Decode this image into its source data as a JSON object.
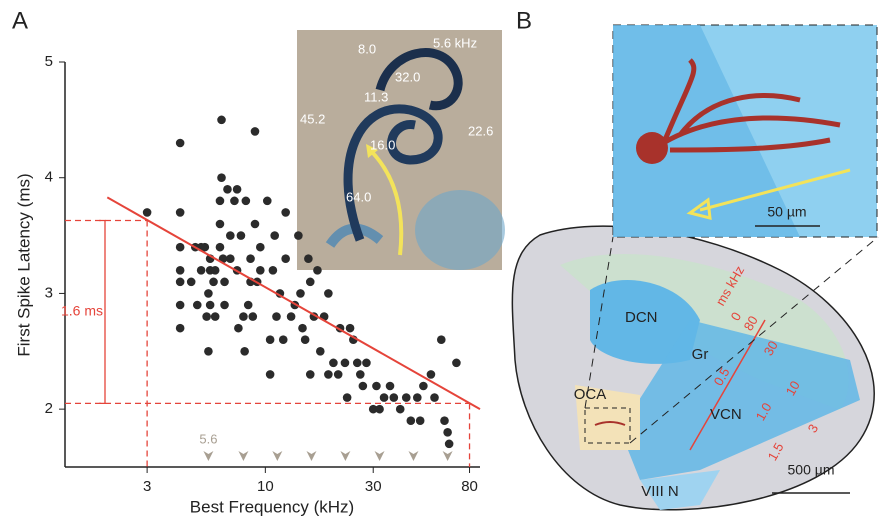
{
  "chart_data": {
    "type": "scatter",
    "panel": "A",
    "xlabel": "Best Frequency (kHz)",
    "ylabel": "First Spike Latency (ms)",
    "xscale": "log",
    "xlim": [
      1.3,
      89
    ],
    "ylim": [
      1.5,
      5
    ],
    "xticks": [
      3,
      10,
      30,
      80
    ],
    "yticks": [
      2,
      3,
      4,
      5
    ],
    "color": "#2b2b2b",
    "x": [
      3.0,
      4.2,
      4.2,
      4.2,
      4.2,
      4.2,
      4.2,
      4.2,
      4.7,
      4.9,
      5.0,
      5.2,
      5.2,
      5.4,
      5.5,
      5.6,
      5.6,
      5.7,
      5.7,
      5.7,
      5.9,
      6.0,
      6.0,
      6.3,
      6.3,
      6.3,
      6.4,
      6.4,
      6.5,
      6.6,
      6.6,
      6.8,
      7.0,
      7.0,
      7.3,
      7.5,
      7.5,
      7.6,
      7.8,
      8.0,
      8.1,
      8.2,
      8.4,
      8.6,
      8.6,
      8.8,
      9.0,
      9.0,
      9.2,
      9.5,
      9.5,
      10.2,
      10.5,
      10.5,
      10.8,
      11.0,
      11.2,
      11.6,
      12.0,
      12.3,
      12.3,
      13.0,
      13.5,
      14.0,
      14.3,
      14.6,
      15.0,
      15.5,
      15.8,
      15.8,
      16.4,
      17.0,
      17.5,
      18.2,
      19.0,
      19.0,
      20.0,
      21.0,
      21.4,
      22.5,
      23.0,
      23.7,
      24.5,
      25.5,
      26.3,
      27.0,
      28.0,
      30.0,
      31.0,
      32.0,
      33.5,
      35.6,
      37.0,
      39.5,
      42.0,
      44.0,
      47.0,
      48.4,
      50.0,
      54.0,
      56.0,
      60.0,
      62.0,
      64.0,
      65.0,
      70.0
    ],
    "values": [
      3.7,
      4.3,
      3.7,
      3.4,
      3.2,
      3.1,
      2.9,
      2.7,
      3.1,
      3.4,
      2.9,
      3.4,
      3.2,
      3.4,
      2.8,
      2.5,
      3.0,
      3.3,
      3.2,
      2.9,
      3.1,
      3.2,
      2.8,
      3.6,
      3.4,
      3.8,
      4.0,
      4.5,
      3.3,
      3.1,
      2.9,
      3.9,
      3.5,
      3.3,
      3.8,
      3.9,
      3.2,
      2.7,
      3.5,
      2.8,
      2.5,
      3.8,
      2.9,
      3.3,
      3.1,
      2.8,
      4.4,
      3.6,
      3.1,
      3.4,
      3.2,
      3.8,
      2.6,
      2.3,
      3.2,
      3.5,
      2.8,
      3.0,
      2.6,
      3.7,
      3.3,
      2.8,
      2.9,
      3.5,
      3.0,
      2.7,
      2.6,
      3.3,
      2.3,
      3.1,
      2.8,
      3.2,
      2.5,
      2.8,
      2.3,
      3.0,
      2.4,
      2.3,
      2.7,
      2.4,
      2.1,
      2.7,
      2.6,
      2.4,
      2.3,
      2.2,
      2.4,
      2.0,
      2.2,
      2.0,
      2.1,
      2.2,
      2.1,
      2.0,
      2.1,
      1.9,
      2.1,
      1.9,
      2.2,
      2.3,
      2.1,
      2.6,
      1.9,
      1.8,
      1.7,
      2.4
    ],
    "fit_line": {
      "x": [
        2.0,
        89
      ],
      "values": [
        3.83,
        2.0
      ],
      "color": "#e5443a"
    },
    "guides": {
      "x": [
        3,
        80
      ],
      "y": [
        3.63,
        2.05
      ]
    },
    "annotation": "1.6 ms",
    "freq_markers": [
      5.6,
      8,
      11.3,
      16,
      22.6,
      32,
      45.2,
      64
    ],
    "inset": {
      "labels": [
        "8.0",
        "5.6 kHz",
        "32.0",
        "11.3",
        "45.2",
        "22.6",
        "16.0",
        "64.0"
      ]
    }
  },
  "panel_b": {
    "label": "B",
    "regions": [
      "DCN",
      "Gr",
      "OCA",
      "VCN",
      "VIII N"
    ],
    "axis_title": "ms kHz",
    "khz_ticks": [
      "80",
      "30",
      "10",
      "3"
    ],
    "ms_ticks": [
      "0",
      "0.5",
      "1.0",
      "1.5"
    ],
    "scale_large": "500 µm",
    "scale_small": "50 µm"
  }
}
